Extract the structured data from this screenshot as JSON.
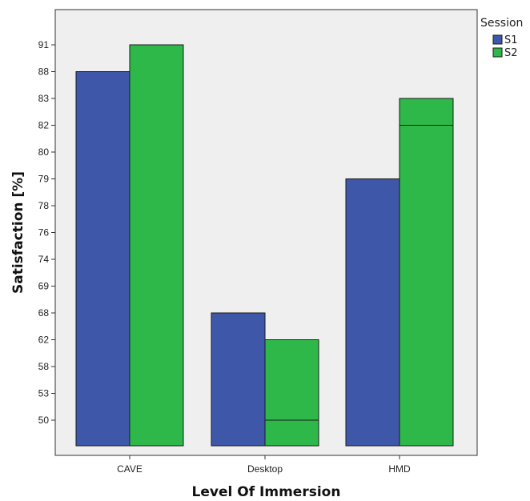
{
  "chart_data": {
    "type": "bar",
    "xlabel": "Level Of Immersion",
    "ylabel": "Satisfaction [%]",
    "categories": [
      "CAVE",
      "Desktop",
      "HMD"
    ],
    "y_ticks": [
      "91",
      "88",
      "83",
      "82",
      "80",
      "79",
      "78",
      "76",
      "74",
      "69",
      "68",
      "62",
      "58",
      "53",
      "50"
    ],
    "legend": {
      "title": "Session",
      "position": "top-right, outside plot"
    },
    "series": [
      {
        "name": "S1",
        "color": "#3f57a8",
        "values": [
          "88",
          "68",
          "79"
        ]
      },
      {
        "name": "S2",
        "color": "#2fb84a",
        "values": [
          "91",
          "62",
          "83"
        ]
      }
    ],
    "inner_lines": [
      {
        "category": "Desktop",
        "series": "S2",
        "value": "50"
      },
      {
        "category": "HMD",
        "series": "S2",
        "value": "82"
      }
    ],
    "grid": false,
    "plot_background": "#efefef"
  }
}
